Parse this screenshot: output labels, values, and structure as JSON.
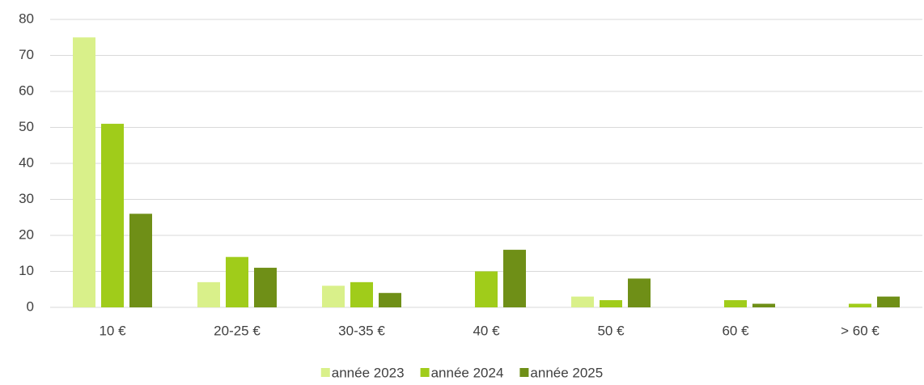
{
  "chart_data": {
    "type": "bar",
    "categories": [
      "10 €",
      "20-25 €",
      "30-35 €",
      "40 €",
      "50 €",
      "60 €",
      "> 60 €"
    ],
    "series": [
      {
        "name": "année 2023",
        "color": "#d9f08a",
        "values": [
          75,
          7,
          6,
          0,
          3,
          0,
          0
        ]
      },
      {
        "name": "année 2024",
        "color": "#a0cc1a",
        "values": [
          51,
          14,
          7,
          10,
          2,
          2,
          1
        ]
      },
      {
        "name": "année 2025",
        "color": "#6f8f17",
        "values": [
          26,
          11,
          4,
          16,
          8,
          1,
          3
        ]
      }
    ],
    "ylim": [
      0,
      80
    ],
    "yticks": [
      0,
      10,
      20,
      30,
      40,
      50,
      60,
      70,
      80
    ],
    "grid": true,
    "legend": "bottom"
  }
}
